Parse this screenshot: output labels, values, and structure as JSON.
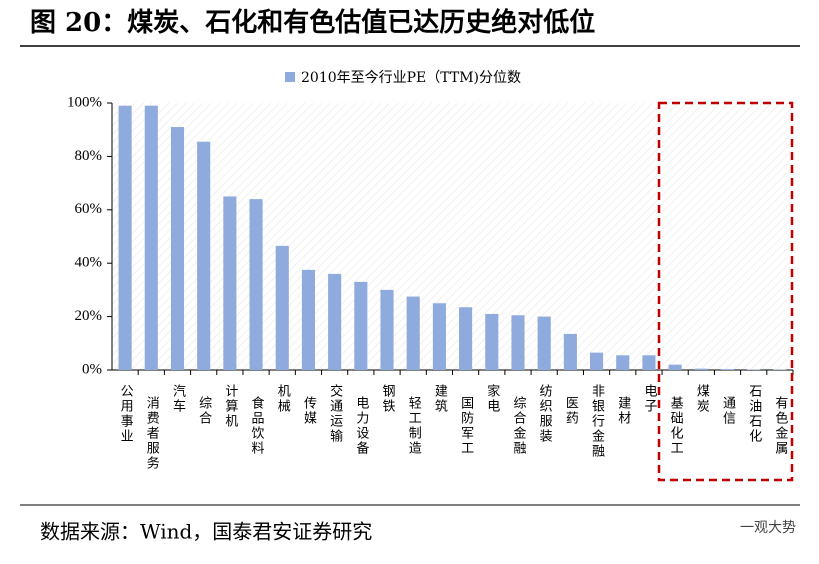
{
  "chart_data": {
    "type": "bar",
    "title": "图 20：煤炭、石化和有色估值已达历史绝对低位",
    "legend_label": "2010年至今行业PE（TTM)分位数",
    "source": "数据来源：Wind，国泰君安证券研究",
    "watermark": "一观大势",
    "color": "#8faadc",
    "categories": [
      "公用事业",
      "消费者服务",
      "汽车",
      "综合",
      "计算机",
      "食品饮料",
      "机械",
      "传媒",
      "交通运输",
      "电力设备",
      "钢铁",
      "轻工制造",
      "建筑",
      "国防军工",
      "家电",
      "综合金融",
      "纺织服装",
      "医药",
      "非银行金融",
      "建材",
      "电子",
      "基础化工",
      "煤炭",
      "通信",
      "石油石化",
      "有色金属"
    ],
    "values": [
      99,
      99,
      91,
      85.5,
      65,
      64,
      46.5,
      37.5,
      36,
      33,
      30,
      27.5,
      25,
      23.5,
      21,
      20.5,
      20,
      13.5,
      6.5,
      5.5,
      5.5,
      2,
      0.5,
      0.3,
      0.2,
      0.2
    ],
    "ylim": [
      0,
      100
    ],
    "yticks": [
      {
        "value": 0,
        "label": "0%"
      },
      {
        "value": 20,
        "label": "20%"
      },
      {
        "value": 40,
        "label": "40%"
      },
      {
        "value": 60,
        "label": "60%"
      },
      {
        "value": 80,
        "label": "80%"
      },
      {
        "value": 100,
        "label": "100%"
      }
    ]
  }
}
